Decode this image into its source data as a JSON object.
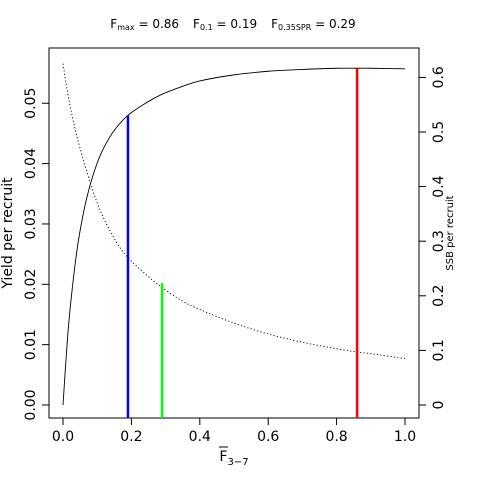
{
  "chart_data": {
    "type": "line",
    "title": {
      "fmax_label": "F",
      "fmax_sub": "max",
      "fmax_value": " = 0.86",
      "f01_label": "F",
      "f01_sub": "0.1",
      "f01_value": " = 0.19",
      "fspr_label": "F",
      "fspr_sub": "0.35SPR",
      "fspr_value": " = 0.29"
    },
    "xlabel": "F",
    "xlabel_sub": "3−7",
    "ylabel": "Yield per recruit",
    "y2label": "SSB per recruit",
    "xlim": [
      0,
      1.0
    ],
    "ylim": [
      0,
      0.057
    ],
    "y2lim": [
      0,
      0.63
    ],
    "x_ticks": [
      0.0,
      0.2,
      0.4,
      0.6,
      0.8,
      1.0
    ],
    "x_tick_labels": [
      "0.0",
      "0.2",
      "0.4",
      "0.6",
      "0.8",
      "1.0"
    ],
    "y_ticks": [
      0.0,
      0.01,
      0.02,
      0.03,
      0.04,
      0.05
    ],
    "y_tick_labels": [
      "0.00",
      "0.01",
      "0.02",
      "0.03",
      "0.04",
      "0.05"
    ],
    "y2_ticks": [
      0,
      0.1,
      0.2,
      0.3,
      0.4,
      0.5,
      0.6
    ],
    "y2_tick_labels": [
      "0",
      "0.1",
      "0.2",
      "0.3",
      "0.4",
      "0.5",
      "0.6"
    ],
    "series": [
      {
        "style": "solid",
        "axis": "left",
        "x": [
          0.0,
          0.01,
          0.02,
          0.04,
          0.06,
          0.08,
          0.1,
          0.12,
          0.15,
          0.19,
          0.25,
          0.29,
          0.35,
          0.4,
          0.5,
          0.6,
          0.7,
          0.8,
          0.86,
          0.9,
          1.0
        ],
        "y": [
          0.0,
          0.0085,
          0.0155,
          0.0253,
          0.0319,
          0.0366,
          0.0401,
          0.0427,
          0.0455,
          0.048,
          0.0503,
          0.0515,
          0.0528,
          0.0537,
          0.0547,
          0.0553,
          0.0556,
          0.0558,
          0.0558,
          0.0558,
          0.0557
        ]
      },
      {
        "style": "dotted",
        "axis": "right",
        "x": [
          0.0,
          0.02,
          0.05,
          0.1,
          0.15,
          0.19,
          0.25,
          0.29,
          0.35,
          0.4,
          0.5,
          0.6,
          0.7,
          0.8,
          0.86,
          0.9,
          1.0
        ],
        "y": [
          0.625,
          0.55,
          0.47,
          0.37,
          0.305,
          0.27,
          0.235,
          0.215,
          0.19,
          0.175,
          0.15,
          0.13,
          0.115,
          0.103,
          0.097,
          0.094,
          0.085
        ]
      }
    ],
    "reference_lines": [
      {
        "x": 0.19,
        "y": 0.048,
        "color": "#0000ff"
      },
      {
        "x": 0.29,
        "y": 0.0202,
        "color": "#00ff00"
      },
      {
        "x": 0.86,
        "y": 0.0558,
        "color": "#ff0000"
      }
    ],
    "grid": false
  }
}
